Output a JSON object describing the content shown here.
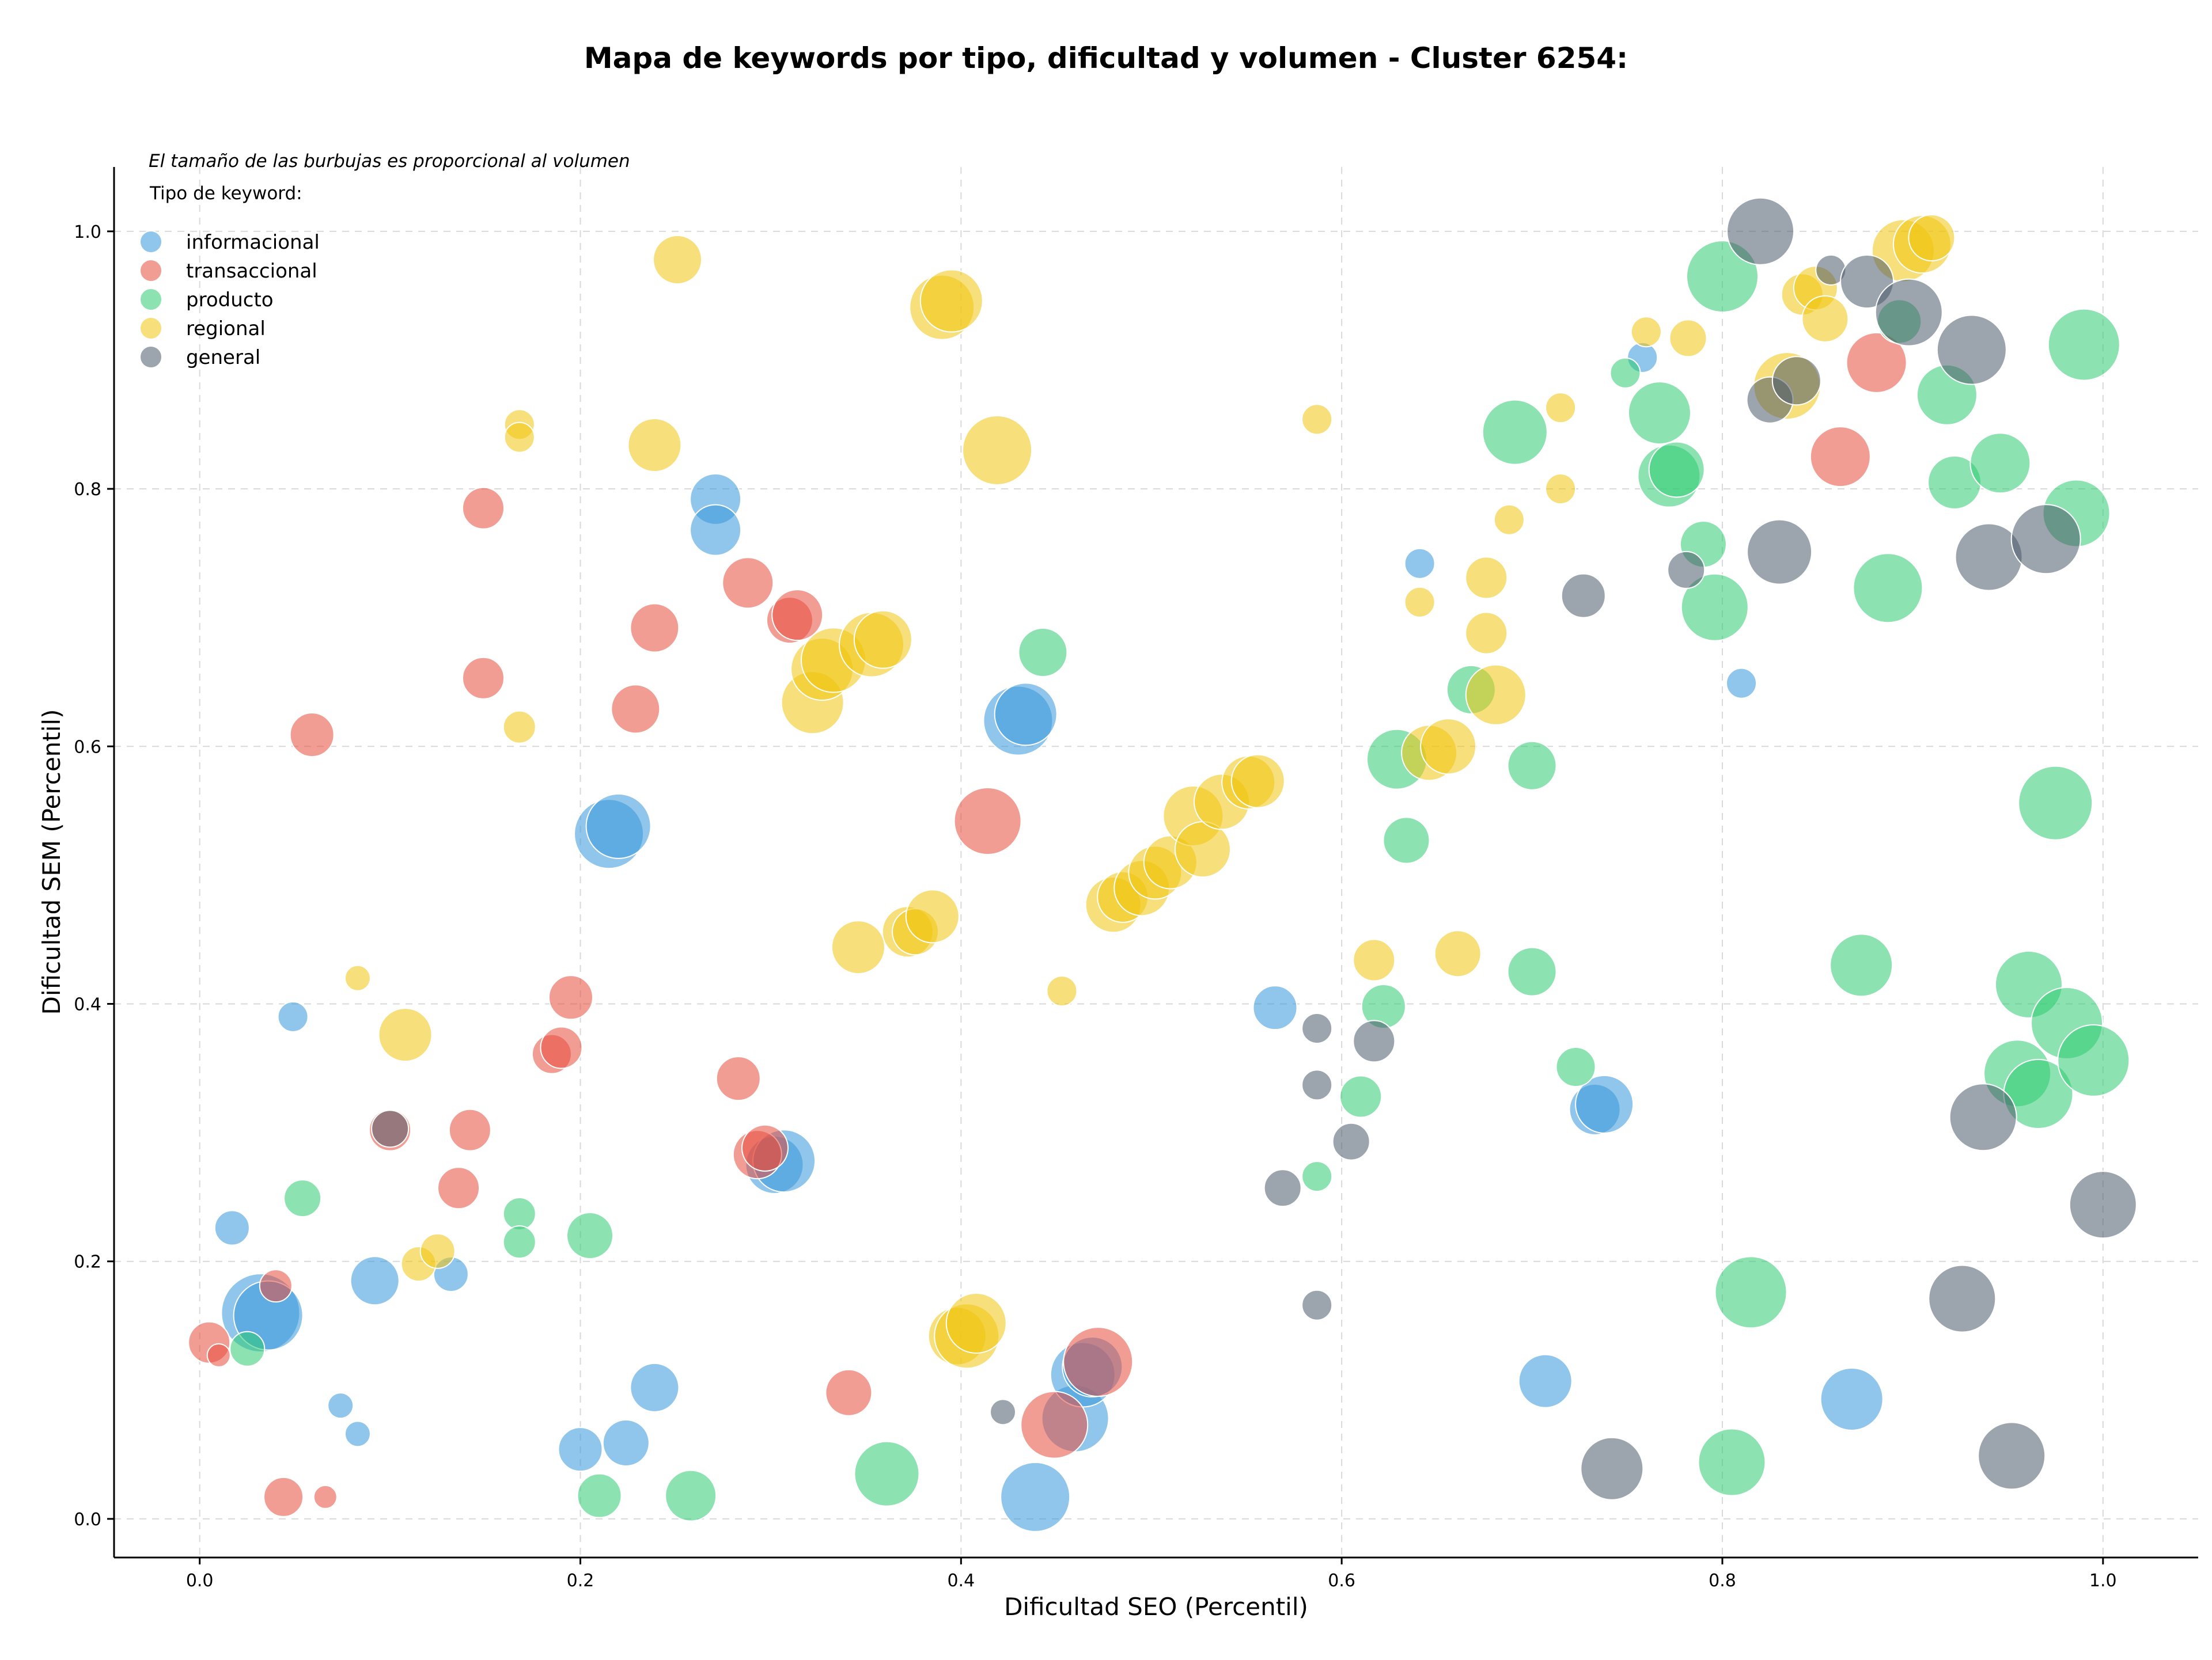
{
  "chart_data": {
    "type": "scatter",
    "title": "Mapa de keywords por tipo, dificultad y volumen - Cluster 6254:",
    "xlabel": "Dificultad SEO (Percentil)",
    "ylabel": "Dificultad SEM (Percentil)",
    "xlim": [
      -0.045,
      1.05
    ],
    "ylim": [
      -0.03,
      1.05
    ],
    "xticks": [
      "0.0",
      "0.2",
      "0.4",
      "0.6",
      "0.8",
      "1.0"
    ],
    "yticks": [
      "0.0",
      "0.2",
      "0.4",
      "0.6",
      "0.8",
      "1.0"
    ],
    "grid": true,
    "annotation": "El tamaño de las burbujas es proporcional al volumen",
    "legend": {
      "title": "Tipo de keyword:",
      "placement": "top-left"
    },
    "series": [
      {
        "name": "informacional",
        "color": "#3498db",
        "points": [
          [
            0.032,
            0.16,
            68
          ],
          [
            0.036,
            0.158,
            60
          ],
          [
            0.017,
            0.226,
            30
          ],
          [
            0.049,
            0.39,
            26
          ],
          [
            0.074,
            0.088,
            22
          ],
          [
            0.083,
            0.066,
            22
          ],
          [
            0.092,
            0.185,
            42
          ],
          [
            0.132,
            0.19,
            30
          ],
          [
            0.2,
            0.054,
            38
          ],
          [
            0.224,
            0.059,
            40
          ],
          [
            0.239,
            0.102,
            42
          ],
          [
            0.215,
            0.532,
            60
          ],
          [
            0.22,
            0.538,
            56
          ],
          [
            0.271,
            0.792,
            44
          ],
          [
            0.271,
            0.768,
            44
          ],
          [
            0.302,
            0.275,
            50
          ],
          [
            0.307,
            0.278,
            54
          ],
          [
            0.43,
            0.62,
            60
          ],
          [
            0.434,
            0.625,
            54
          ],
          [
            0.439,
            0.017,
            60
          ],
          [
            0.46,
            0.078,
            58
          ],
          [
            0.464,
            0.112,
            56
          ],
          [
            0.469,
            0.118,
            52
          ],
          [
            0.565,
            0.397,
            38
          ],
          [
            0.641,
            0.742,
            26
          ],
          [
            0.707,
            0.107,
            46
          ],
          [
            0.733,
            0.318,
            44
          ],
          [
            0.738,
            0.322,
            50
          ],
          [
            0.758,
            0.902,
            26
          ],
          [
            0.81,
            0.649,
            26
          ],
          [
            0.868,
            0.093,
            54
          ]
        ]
      },
      {
        "name": "transaccional",
        "color": "#e74c3c",
        "points": [
          [
            0.005,
            0.137,
            36
          ],
          [
            0.01,
            0.127,
            20
          ],
          [
            0.04,
            0.181,
            28
          ],
          [
            0.044,
            0.017,
            34
          ],
          [
            0.066,
            0.017,
            20
          ],
          [
            0.059,
            0.609,
            38
          ],
          [
            0.1,
            0.302,
            36
          ],
          [
            0.136,
            0.257,
            36
          ],
          [
            0.142,
            0.302,
            36
          ],
          [
            0.149,
            0.785,
            36
          ],
          [
            0.149,
            0.653,
            36
          ],
          [
            0.185,
            0.361,
            34
          ],
          [
            0.19,
            0.366,
            36
          ],
          [
            0.195,
            0.405,
            38
          ],
          [
            0.229,
            0.629,
            42
          ],
          [
            0.239,
            0.692,
            42
          ],
          [
            0.283,
            0.342,
            38
          ],
          [
            0.288,
            0.727,
            44
          ],
          [
            0.293,
            0.283,
            42
          ],
          [
            0.297,
            0.288,
            40
          ],
          [
            0.31,
            0.698,
            40
          ],
          [
            0.314,
            0.702,
            44
          ],
          [
            0.341,
            0.098,
            40
          ],
          [
            0.414,
            0.542,
            58
          ],
          [
            0.449,
            0.073,
            58
          ],
          [
            0.472,
            0.122,
            60
          ],
          [
            0.862,
            0.825,
            52
          ],
          [
            0.881,
            0.898,
            52
          ]
        ]
      },
      {
        "name": "producto",
        "color": "#2ecc71",
        "points": [
          [
            0.025,
            0.132,
            30
          ],
          [
            0.054,
            0.249,
            32
          ],
          [
            0.168,
            0.237,
            28
          ],
          [
            0.168,
            0.215,
            28
          ],
          [
            0.205,
            0.22,
            40
          ],
          [
            0.21,
            0.018,
            38
          ],
          [
            0.258,
            0.018,
            44
          ],
          [
            0.361,
            0.035,
            56
          ],
          [
            0.443,
            0.673,
            42
          ],
          [
            0.587,
            0.266,
            26
          ],
          [
            0.61,
            0.328,
            36
          ],
          [
            0.622,
            0.398,
            38
          ],
          [
            0.629,
            0.59,
            52
          ],
          [
            0.634,
            0.527,
            40
          ],
          [
            0.668,
            0.644,
            42
          ],
          [
            0.691,
            0.844,
            56
          ],
          [
            0.7,
            0.425,
            42
          ],
          [
            0.7,
            0.585,
            42
          ],
          [
            0.723,
            0.351,
            34
          ],
          [
            0.749,
            0.89,
            26
          ],
          [
            0.767,
            0.859,
            54
          ],
          [
            0.772,
            0.81,
            54
          ],
          [
            0.776,
            0.815,
            48
          ],
          [
            0.79,
            0.757,
            40
          ],
          [
            0.796,
            0.708,
            58
          ],
          [
            0.8,
            0.965,
            62
          ],
          [
            0.805,
            0.044,
            58
          ],
          [
            0.815,
            0.176,
            62
          ],
          [
            0.873,
            0.43,
            54
          ],
          [
            0.887,
            0.723,
            60
          ],
          [
            0.893,
            0.93,
            38
          ],
          [
            0.918,
            0.873,
            52
          ],
          [
            0.922,
            0.805,
            46
          ],
          [
            0.946,
            0.82,
            52
          ],
          [
            0.955,
            0.346,
            58
          ],
          [
            0.961,
            0.415,
            58
          ],
          [
            0.966,
            0.33,
            60
          ],
          [
            0.975,
            0.556,
            64
          ],
          [
            0.981,
            0.385,
            62
          ],
          [
            0.986,
            0.781,
            58
          ],
          [
            0.99,
            0.912,
            62
          ],
          [
            0.995,
            0.356,
            62
          ]
        ]
      },
      {
        "name": "regional",
        "color": "#f1c40f",
        "points": [
          [
            0.083,
            0.42,
            22
          ],
          [
            0.108,
            0.376,
            46
          ],
          [
            0.115,
            0.198,
            30
          ],
          [
            0.125,
            0.208,
            30
          ],
          [
            0.168,
            0.85,
            26
          ],
          [
            0.168,
            0.84,
            26
          ],
          [
            0.168,
            0.615,
            28
          ],
          [
            0.239,
            0.834,
            46
          ],
          [
            0.251,
            0.978,
            42
          ],
          [
            0.322,
            0.634,
            54
          ],
          [
            0.327,
            0.66,
            54
          ],
          [
            0.333,
            0.667,
            56
          ],
          [
            0.346,
            0.444,
            46
          ],
          [
            0.353,
            0.679,
            56
          ],
          [
            0.359,
            0.683,
            50
          ],
          [
            0.372,
            0.456,
            44
          ],
          [
            0.376,
            0.456,
            40
          ],
          [
            0.385,
            0.468,
            46
          ],
          [
            0.39,
            0.941,
            56
          ],
          [
            0.395,
            0.946,
            54
          ],
          [
            0.398,
            0.142,
            50
          ],
          [
            0.403,
            0.142,
            56
          ],
          [
            0.408,
            0.152,
            52
          ],
          [
            0.419,
            0.83,
            60
          ],
          [
            0.453,
            0.41,
            26
          ],
          [
            0.48,
            0.477,
            48
          ],
          [
            0.485,
            0.483,
            44
          ],
          [
            0.495,
            0.49,
            48
          ],
          [
            0.502,
            0.502,
            46
          ],
          [
            0.51,
            0.51,
            46
          ],
          [
            0.522,
            0.546,
            52
          ],
          [
            0.527,
            0.52,
            48
          ],
          [
            0.537,
            0.557,
            48
          ],
          [
            0.551,
            0.572,
            46
          ],
          [
            0.556,
            0.573,
            46
          ],
          [
            0.587,
            0.854,
            26
          ],
          [
            0.617,
            0.434,
            36
          ],
          [
            0.641,
            0.712,
            26
          ],
          [
            0.646,
            0.595,
            48
          ],
          [
            0.656,
            0.6,
            48
          ],
          [
            0.661,
            0.439,
            40
          ],
          [
            0.676,
            0.731,
            36
          ],
          [
            0.676,
            0.688,
            36
          ],
          [
            0.681,
            0.64,
            52
          ],
          [
            0.688,
            0.776,
            26
          ],
          [
            0.715,
            0.863,
            26
          ],
          [
            0.715,
            0.8,
            26
          ],
          [
            0.76,
            0.922,
            26
          ],
          [
            0.782,
            0.917,
            32
          ],
          [
            0.834,
            0.88,
            58
          ],
          [
            0.842,
            0.951,
            36
          ],
          [
            0.849,
            0.956,
            38
          ],
          [
            0.854,
            0.932,
            40
          ],
          [
            0.895,
            0.985,
            54
          ],
          [
            0.905,
            0.99,
            50
          ],
          [
            0.91,
            0.995,
            40
          ]
        ]
      },
      {
        "name": "general",
        "color": "#4a5a6a",
        "points": [
          [
            0.1,
            0.303,
            32
          ],
          [
            0.422,
            0.083,
            22
          ],
          [
            0.569,
            0.257,
            32
          ],
          [
            0.587,
            0.381,
            26
          ],
          [
            0.587,
            0.337,
            26
          ],
          [
            0.587,
            0.166,
            26
          ],
          [
            0.605,
            0.293,
            32
          ],
          [
            0.617,
            0.371,
            36
          ],
          [
            0.727,
            0.717,
            38
          ],
          [
            0.742,
            0.039,
            54
          ],
          [
            0.781,
            0.737,
            32
          ],
          [
            0.82,
            1.0,
            58
          ],
          [
            0.825,
            0.869,
            40
          ],
          [
            0.83,
            0.751,
            56
          ],
          [
            0.839,
            0.884,
            42
          ],
          [
            0.857,
            0.97,
            26
          ],
          [
            0.876,
            0.961,
            46
          ],
          [
            0.898,
            0.937,
            58
          ],
          [
            0.926,
            0.171,
            58
          ],
          [
            0.931,
            0.908,
            60
          ],
          [
            0.937,
            0.312,
            58
          ],
          [
            0.94,
            0.747,
            58
          ],
          [
            0.952,
            0.049,
            58
          ],
          [
            0.97,
            0.761,
            60
          ],
          [
            1.0,
            0.244,
            58
          ]
        ]
      }
    ]
  }
}
